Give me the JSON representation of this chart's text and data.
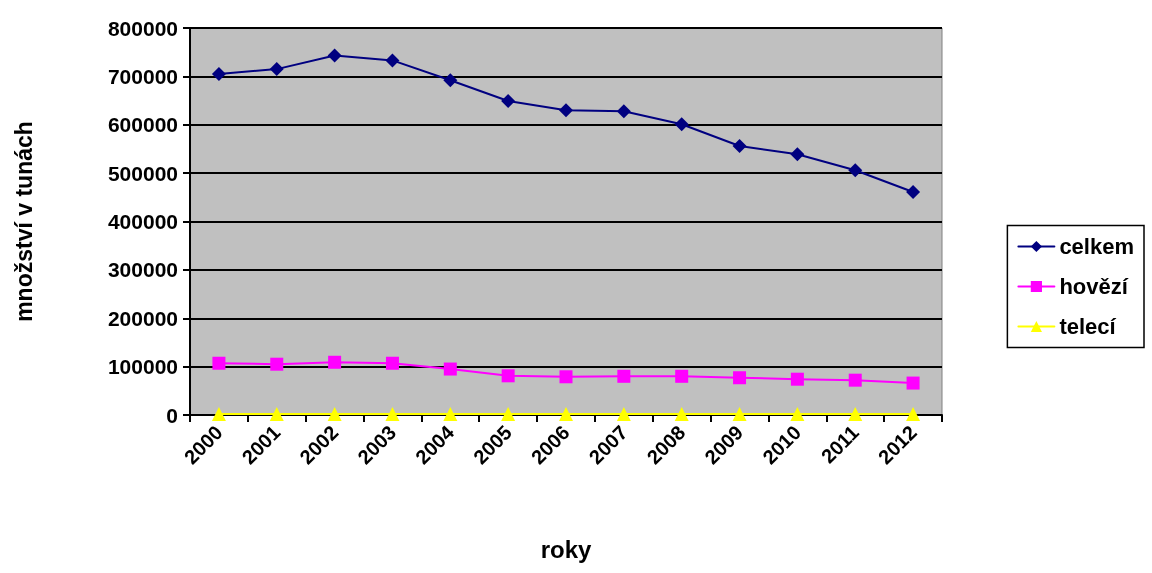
{
  "chart_data": {
    "type": "line",
    "xlabel": "roky",
    "ylabel": "množství v tunách",
    "categories": [
      "2000",
      "2001",
      "2002",
      "2003",
      "2004",
      "2005",
      "2006",
      "2007",
      "2008",
      "2009",
      "2010",
      "2011",
      "2012"
    ],
    "series": [
      {
        "name": "celkem",
        "color": "#000080",
        "marker": "diamond",
        "values": [
          705000,
          715000,
          743000,
          733000,
          692000,
          649000,
          630000,
          628000,
          601000,
          556000,
          539000,
          506000,
          461000
        ]
      },
      {
        "name": "hovězí",
        "color": "#ff00ff",
        "marker": "square",
        "values": [
          107000,
          105000,
          109000,
          107000,
          95000,
          81000,
          79000,
          80000,
          80000,
          77000,
          74000,
          72000,
          66000
        ]
      },
      {
        "name": "telecí",
        "color": "#ffff00",
        "marker": "triangle",
        "values": [
          2000,
          2000,
          2000,
          2000,
          2000,
          2000,
          2000,
          2000,
          2000,
          2000,
          2000,
          2000,
          2000
        ]
      }
    ],
    "ylim": [
      0,
      800000
    ],
    "yticks": [
      0,
      100000,
      200000,
      300000,
      400000,
      500000,
      600000,
      700000,
      800000
    ],
    "grid": "y",
    "legend": "right"
  }
}
